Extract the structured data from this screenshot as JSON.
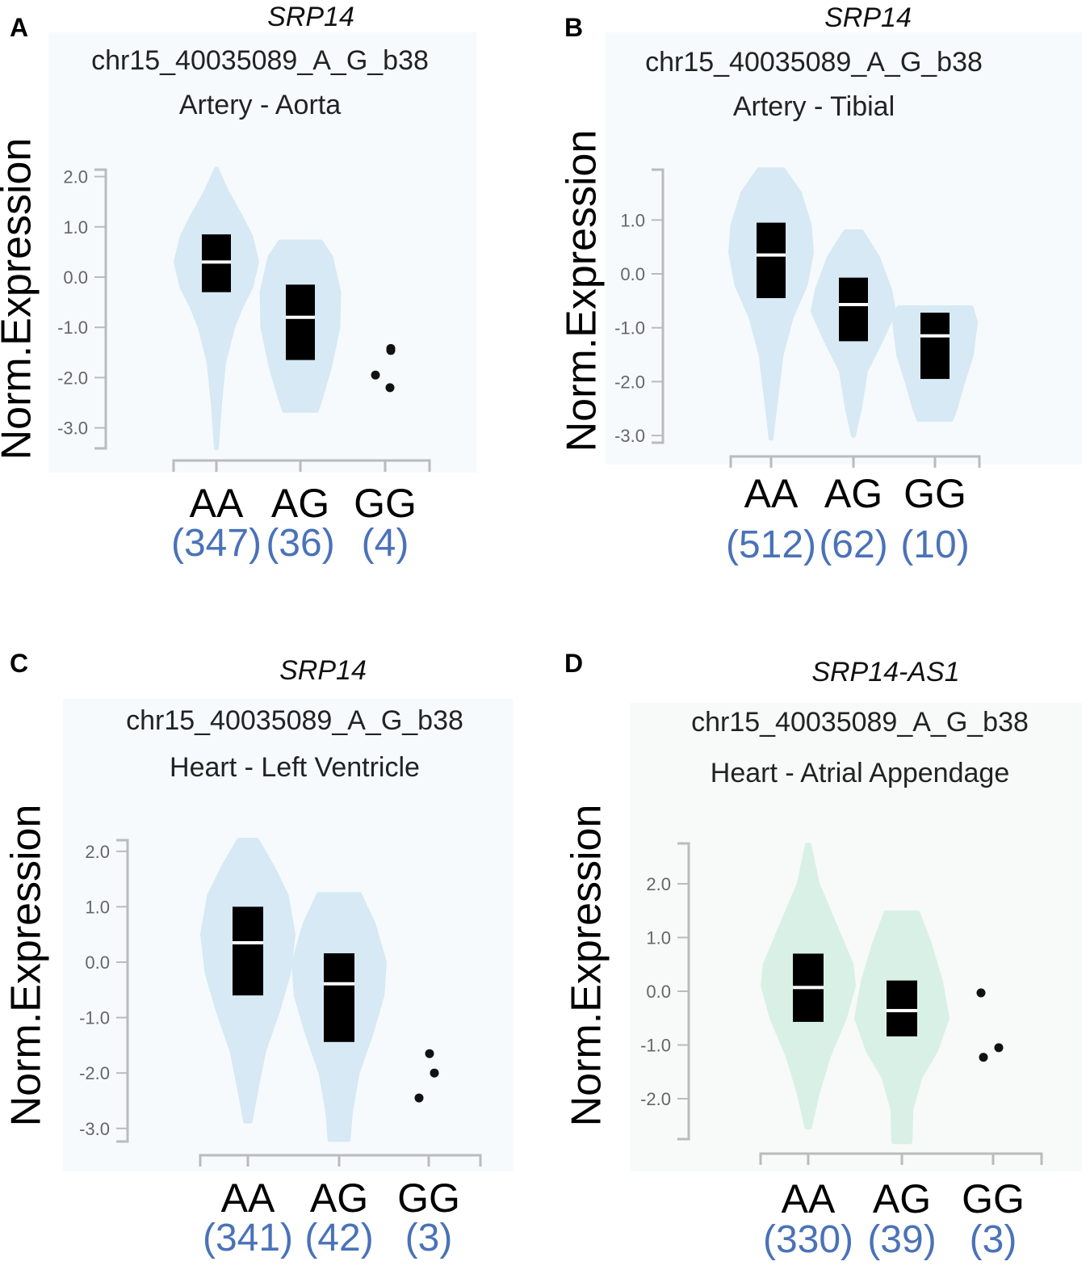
{
  "chart_data": [
    {
      "type": "violin",
      "panel": "A",
      "gene": "SRP14",
      "variant": "chr15_40035089_A_G_b38",
      "tissue": "Artery - Aorta",
      "ylabel": "Norm.Expression",
      "yticks": [
        "2.0",
        "1.0",
        "0.0",
        "-1.0",
        "-2.0",
        "-3.0"
      ],
      "ylim": [
        -3.5,
        2.2
      ],
      "violin_color": "#d6e9f4",
      "groups": [
        {
          "label": "AA",
          "count": "(347)",
          "range": [
            -3.4,
            2.15
          ],
          "q1": -0.3,
          "median": 0.3,
          "q3": 0.85,
          "density": [
            [
              2.15,
              0
            ],
            [
              1.7,
              0.25
            ],
            [
              1.2,
              0.6
            ],
            [
              0.8,
              0.85
            ],
            [
              0.3,
              1
            ],
            [
              -0.2,
              0.85
            ],
            [
              -0.6,
              0.6
            ],
            [
              -1.0,
              0.4
            ],
            [
              -1.7,
              0.18
            ],
            [
              -2.5,
              0.08
            ],
            [
              -3.4,
              0
            ]
          ]
        },
        {
          "label": "AG",
          "count": "(36)",
          "range": [
            -2.65,
            0.7
          ],
          "q1": -1.65,
          "median": -0.8,
          "q3": -0.15,
          "density": [
            [
              0.7,
              0.5
            ],
            [
              0.4,
              0.75
            ],
            [
              -0.3,
              0.95
            ],
            [
              -1.0,
              0.93
            ],
            [
              -1.8,
              0.72
            ],
            [
              -2.4,
              0.5
            ],
            [
              -2.65,
              0.4
            ]
          ]
        },
        {
          "label": "GG",
          "count": "(4)",
          "points": [
            -1.42,
            -1.46,
            -1.95,
            -2.2
          ]
        }
      ]
    },
    {
      "type": "violin",
      "panel": "B",
      "gene": "SRP14",
      "variant": "chr15_40035089_A_G_b38",
      "tissue": "Artery - Tibial",
      "ylabel": "Norm.Expression",
      "yticks": [
        "1.0",
        "0.0",
        "-1.0",
        "-2.0",
        "-3.0"
      ],
      "ylim": [
        -3.1,
        2.0
      ],
      "violin_color": "#d6e9f4",
      "groups": [
        {
          "label": "AA",
          "count": "(512)",
          "range": [
            -3.05,
            1.93
          ],
          "q1": -0.45,
          "median": 0.35,
          "q3": 0.95,
          "density": [
            [
              1.93,
              0.3
            ],
            [
              1.5,
              0.7
            ],
            [
              0.9,
              0.95
            ],
            [
              0.4,
              1
            ],
            [
              -0.2,
              0.85
            ],
            [
              -0.8,
              0.5
            ],
            [
              -1.5,
              0.25
            ],
            [
              -2.3,
              0.12
            ],
            [
              -3.05,
              0
            ]
          ]
        },
        {
          "label": "AG",
          "count": "(62)",
          "range": [
            -3.0,
            0.78
          ],
          "q1": -1.25,
          "median": -0.57,
          "q3": -0.07,
          "density": [
            [
              0.78,
              0.2
            ],
            [
              0.3,
              0.6
            ],
            [
              -0.3,
              0.9
            ],
            [
              -0.7,
              1
            ],
            [
              -1.2,
              0.7
            ],
            [
              -1.8,
              0.3
            ],
            [
              -2.5,
              0.15
            ],
            [
              -3.0,
              0
            ]
          ]
        },
        {
          "label": "GG",
          "count": "(10)",
          "range": [
            -2.7,
            -0.63
          ],
          "q1": -1.95,
          "median": -1.15,
          "q3": -0.72,
          "density": [
            [
              -0.63,
              0.9
            ],
            [
              -0.9,
              1
            ],
            [
              -1.5,
              0.9
            ],
            [
              -2.1,
              0.65
            ],
            [
              -2.5,
              0.5
            ],
            [
              -2.7,
              0.4
            ]
          ]
        }
      ]
    },
    {
      "type": "violin",
      "panel": "C",
      "gene": "SRP14",
      "variant": "chr15_40035089_A_G_b38",
      "tissue": "Heart - Left Ventricle",
      "ylabel": "Norm.Expression",
      "yticks": [
        "2.0",
        "1.0",
        "0.0",
        "-1.0",
        "-2.0",
        "-3.0"
      ],
      "ylim": [
        -3.2,
        2.2
      ],
      "violin_color": "#d6e9f4",
      "groups": [
        {
          "label": "AA",
          "count": "(341)",
          "range": [
            -2.87,
            2.2
          ],
          "q1": -0.6,
          "median": 0.35,
          "q3": 1.0,
          "density": [
            [
              2.2,
              0.2
            ],
            [
              1.7,
              0.55
            ],
            [
              1.2,
              0.85
            ],
            [
              0.5,
              1
            ],
            [
              -0.2,
              0.9
            ],
            [
              -0.9,
              0.65
            ],
            [
              -1.6,
              0.35
            ],
            [
              -2.3,
              0.18
            ],
            [
              -2.87,
              0.05
            ]
          ]
        },
        {
          "label": "AG",
          "count": "(42)",
          "range": [
            -3.2,
            1.22
          ],
          "q1": -1.44,
          "median": -0.39,
          "q3": 0.16,
          "density": [
            [
              1.22,
              0.45
            ],
            [
              0.7,
              0.75
            ],
            [
              0.0,
              1
            ],
            [
              -0.6,
              0.95
            ],
            [
              -1.3,
              0.7
            ],
            [
              -2.0,
              0.4
            ],
            [
              -2.7,
              0.25
            ],
            [
              -3.2,
              0.2
            ]
          ]
        },
        {
          "label": "GG",
          "count": "(3)",
          "points": [
            -1.65,
            -2.0,
            -2.45
          ]
        }
      ]
    },
    {
      "type": "violin",
      "panel": "D",
      "gene": "SRP14-AS1",
      "variant": "chr15_40035089_A_G_b38",
      "tissue": "Heart - Atrial Appendage",
      "ylabel": "Norm.Expression",
      "yticks": [
        "2.0",
        "1.0",
        "0.0",
        "-1.0",
        "-2.0"
      ],
      "ylim": [
        -2.8,
        2.8
      ],
      "violin_color": "#d9f0e6",
      "groups": [
        {
          "label": "AA",
          "count": "(330)",
          "range": [
            -2.53,
            2.72
          ],
          "q1": -0.57,
          "median": 0.07,
          "q3": 0.7,
          "density": [
            [
              2.72,
              0.02
            ],
            [
              2.0,
              0.2
            ],
            [
              1.2,
              0.6
            ],
            [
              0.5,
              0.95
            ],
            [
              0.1,
              1
            ],
            [
              -0.5,
              0.8
            ],
            [
              -1.2,
              0.45
            ],
            [
              -1.9,
              0.2
            ],
            [
              -2.53,
              0.03
            ]
          ]
        },
        {
          "label": "AG",
          "count": "(39)",
          "range": [
            -2.8,
            1.46
          ],
          "q1": -0.84,
          "median": -0.36,
          "q3": 0.2,
          "density": [
            [
              1.46,
              0.35
            ],
            [
              0.9,
              0.6
            ],
            [
              0.2,
              0.85
            ],
            [
              -0.5,
              1
            ],
            [
              -1.1,
              0.75
            ],
            [
              -1.6,
              0.4
            ],
            [
              -2.2,
              0.2
            ],
            [
              -2.8,
              0.18
            ]
          ]
        },
        {
          "label": "GG",
          "count": "(3)",
          "points": [
            -0.03,
            -1.05,
            -1.23
          ]
        }
      ]
    }
  ]
}
